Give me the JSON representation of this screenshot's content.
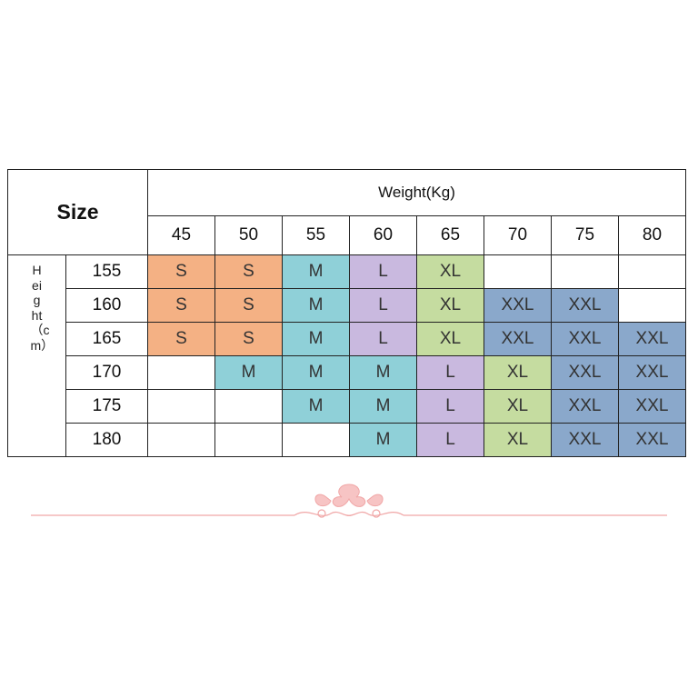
{
  "header": {
    "size_label": "Size",
    "weight_title": "Weight(Kg)",
    "height_label": "Height（cm）"
  },
  "weights": [
    "45",
    "50",
    "55",
    "60",
    "65",
    "70",
    "75",
    "80"
  ],
  "rows": [
    {
      "height": "155",
      "cells": [
        "S",
        "S",
        "M",
        "L",
        "XL",
        "",
        "",
        ""
      ]
    },
    {
      "height": "160",
      "cells": [
        "S",
        "S",
        "M",
        "L",
        "XL",
        "XXL",
        "XXL",
        ""
      ]
    },
    {
      "height": "165",
      "cells": [
        "S",
        "S",
        "M",
        "L",
        "XL",
        "XXL",
        "XXL",
        "XXL"
      ]
    },
    {
      "height": "170",
      "cells": [
        "",
        "M",
        "M",
        "M",
        "L",
        "XL",
        "XXL",
        "XXL"
      ]
    },
    {
      "height": "175",
      "cells": [
        "",
        "",
        "M",
        "M",
        "L",
        "XL",
        "XXL",
        "XXL"
      ]
    },
    {
      "height": "180",
      "cells": [
        "",
        "",
        "",
        "M",
        "L",
        "XL",
        "XXL",
        "XXL"
      ]
    }
  ],
  "size_colors": {
    "S": "#f4b184",
    "M": "#8fd0d8",
    "L": "#c9b9df",
    "XL": "#c5dca0",
    "XXL": "#8aa8cb"
  },
  "ornament": {
    "icon": "floral-divider-icon",
    "color": "#f0a6a6"
  }
}
